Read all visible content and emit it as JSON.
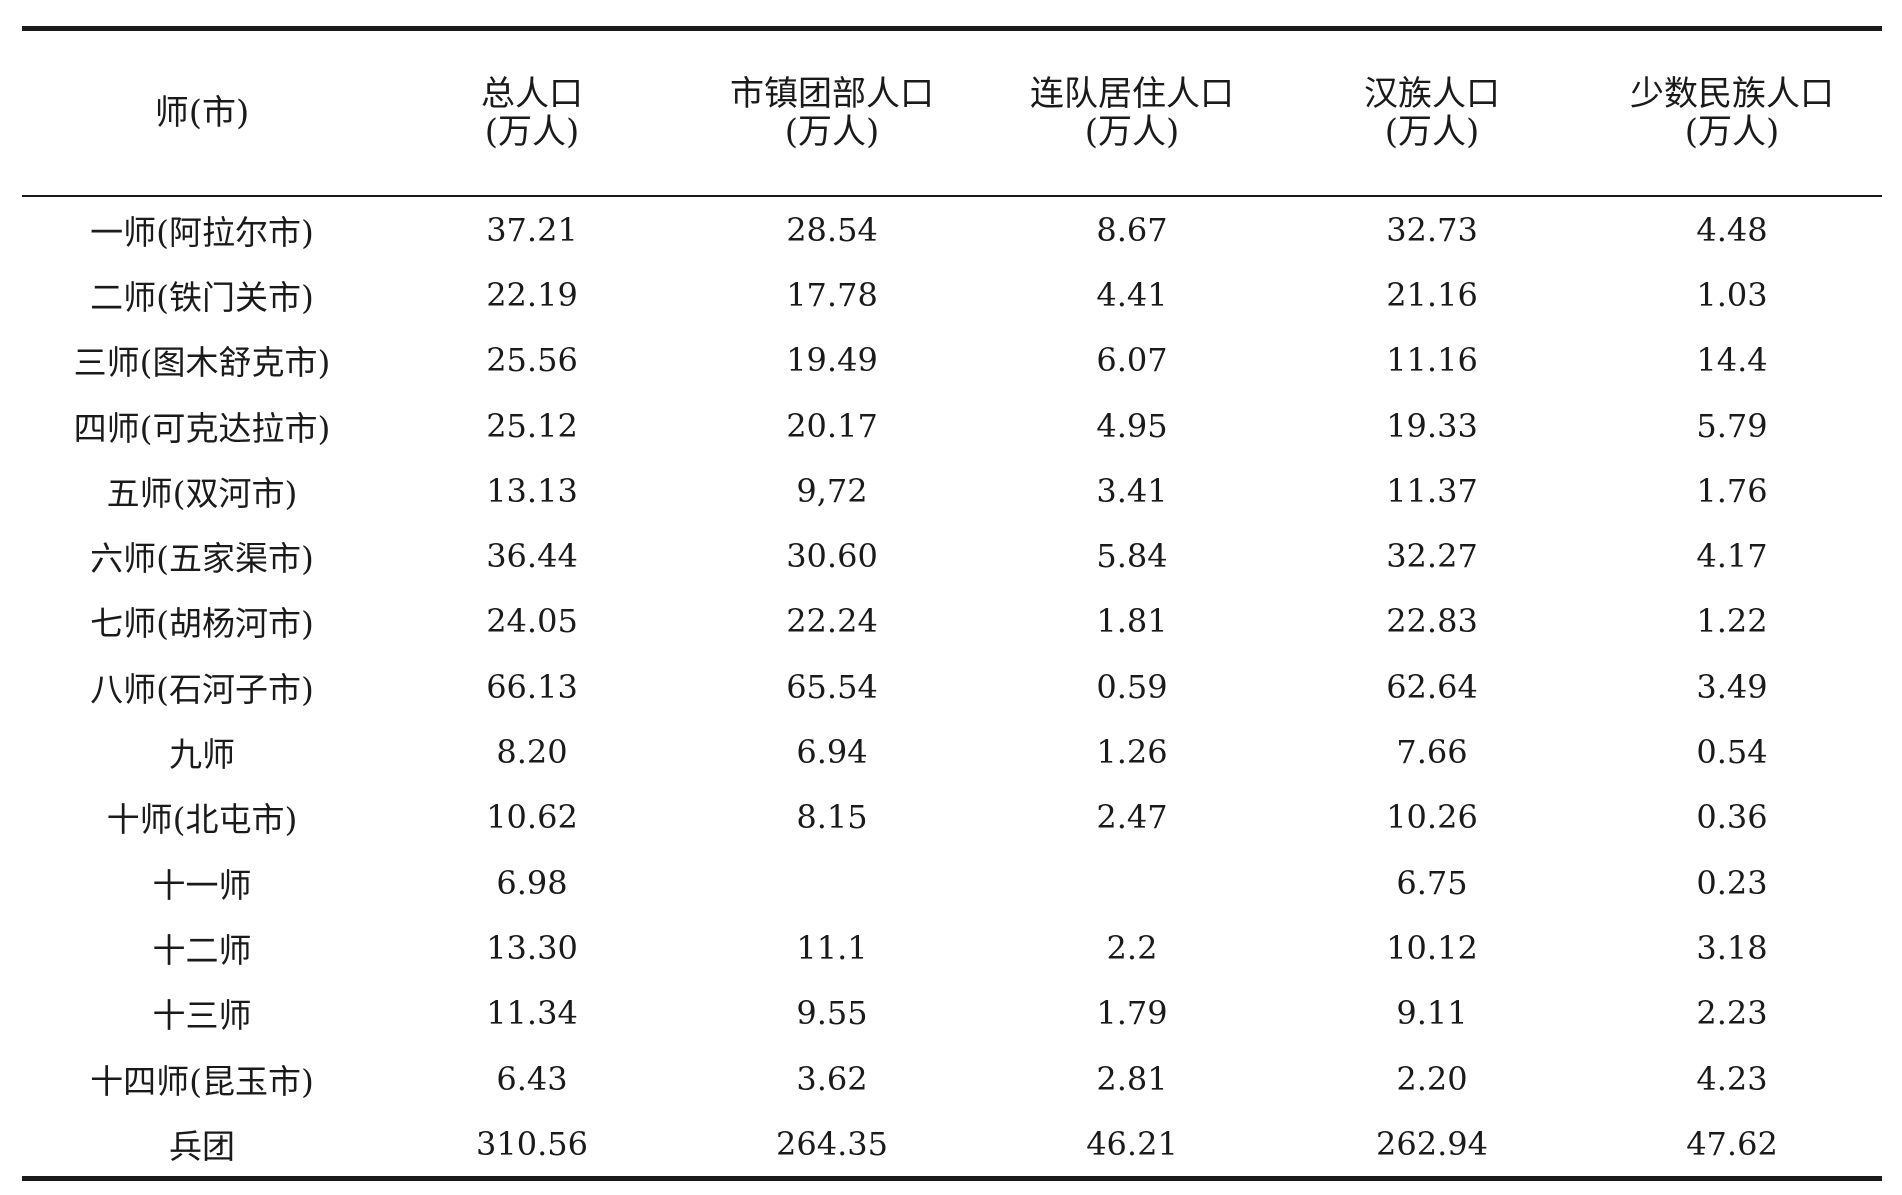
{
  "table": {
    "headers": [
      {
        "line1": "师(市)",
        "line2": ""
      },
      {
        "line1": "总人口",
        "line2": "(万人)"
      },
      {
        "line1": "市镇团部人口",
        "line2": "(万人)"
      },
      {
        "line1": "连队居住人口",
        "line2": "(万人)"
      },
      {
        "line1": "汉族人口",
        "line2": "(万人)"
      },
      {
        "line1": "少数民族人口",
        "line2": "(万人)"
      }
    ],
    "rows": [
      [
        "一师(阿拉尔市)",
        "37.21",
        "28.54",
        "8.67",
        "32.73",
        "4.48"
      ],
      [
        "二师(铁门关市)",
        "22.19",
        "17.78",
        "4.41",
        "21.16",
        "1.03"
      ],
      [
        "三师(图木舒克市)",
        "25.56",
        "19.49",
        "6.07",
        "11.16",
        "14.4"
      ],
      [
        "四师(可克达拉市)",
        "25.12",
        "20.17",
        "4.95",
        "19.33",
        "5.79"
      ],
      [
        "五师(双河市)",
        "13.13",
        "9,72",
        "3.41",
        "11.37",
        "1.76"
      ],
      [
        "六师(五家渠市)",
        "36.44",
        "30.60",
        "5.84",
        "32.27",
        "4.17"
      ],
      [
        "七师(胡杨河市)",
        "24.05",
        "22.24",
        "1.81",
        "22.83",
        "1.22"
      ],
      [
        "八师(石河子市)",
        "66.13",
        "65.54",
        "0.59",
        "62.64",
        "3.49"
      ],
      [
        "九师",
        "8.20",
        "6.94",
        "1.26",
        "7.66",
        "0.54"
      ],
      [
        "十师(北屯市)",
        "10.62",
        "8.15",
        "2.47",
        "10.26",
        "0.36"
      ],
      [
        "十一师",
        "6.98",
        "",
        "",
        "6.75",
        "0.23"
      ],
      [
        "十二师",
        "13.30",
        "11.1",
        "2.2",
        "10.12",
        "3.18"
      ],
      [
        "十三师",
        "11.34",
        "9.55",
        "1.79",
        "9.11",
        "2.23"
      ],
      [
        "十四师(昆玉市)",
        "6.43",
        "3.62",
        "2.81",
        "2.20",
        "4.23"
      ],
      [
        "兵团",
        "310.56",
        "264.35",
        "46.21",
        "262.94",
        "47.62"
      ]
    ]
  }
}
